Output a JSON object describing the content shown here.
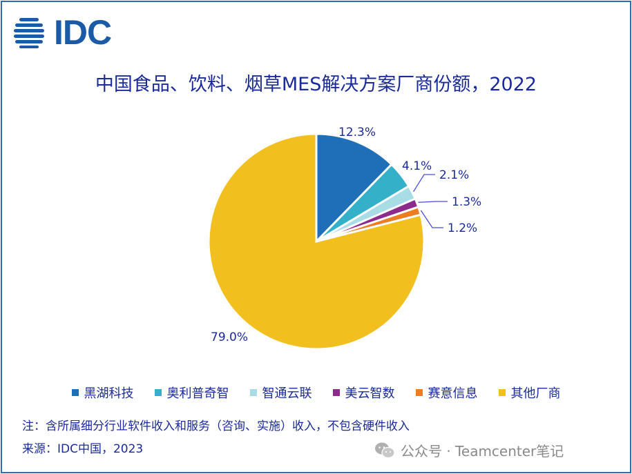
{
  "logo": {
    "text": "IDC",
    "color": "#1a5aa6"
  },
  "chart_data": {
    "type": "pie",
    "title": "中国食品、饮料、烟草MES解决方案厂商份额，2022",
    "slices": [
      {
        "name": "黑湖科技",
        "value": 12.3,
        "label": "12.3%",
        "color": "#1f6fb8"
      },
      {
        "name": "奥利普奇智",
        "value": 4.1,
        "label": "4.1%",
        "color": "#35b0c9"
      },
      {
        "name": "智通云联",
        "value": 2.1,
        "label": "2.1%",
        "color": "#a8dde6"
      },
      {
        "name": "美云智数",
        "value": 1.3,
        "label": "1.3%",
        "color": "#8b2b8c"
      },
      {
        "name": "赛意信息",
        "value": 1.2,
        "label": "1.2%",
        "color": "#ee7d22"
      },
      {
        "name": "其他厂商",
        "value": 79.0,
        "label": "79.0%",
        "color": "#f2c01e"
      }
    ],
    "start_angle": "12 o'clock",
    "direction": "clockwise",
    "legend_position": "bottom"
  },
  "footer": {
    "note": "注：含所属细分行业软件收入和服务（咨询、实施）收入，不包含硬件收入",
    "source": "来源：IDC中国，2023"
  },
  "watermark": {
    "text": "公众号 · Teamcenter笔记",
    "icon": "wechat-icon"
  }
}
